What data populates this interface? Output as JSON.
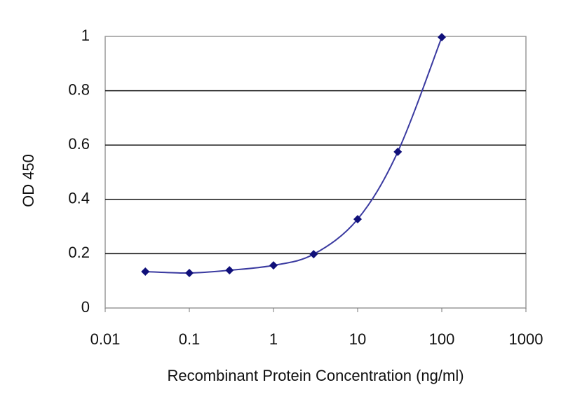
{
  "chart_data": {
    "type": "line",
    "xlabel": "Recombinant Protein Concentration (ng/ml)",
    "ylabel": "OD 450",
    "x": [
      0.03,
      0.1,
      0.3,
      1,
      3,
      10,
      30,
      100
    ],
    "values": [
      0.134,
      0.129,
      0.139,
      0.157,
      0.198,
      0.327,
      0.575,
      0.997
    ],
    "color": "#10107a",
    "line_color": "#3a3aa0",
    "xscale": "log",
    "xlim": [
      0.01,
      1000
    ],
    "xticks": [
      0.01,
      0.1,
      1,
      10,
      100,
      1000
    ],
    "ylim": [
      0,
      1
    ],
    "yticks": [
      0,
      0.2,
      0.4,
      0.6,
      0.8,
      1
    ],
    "grid": true
  }
}
